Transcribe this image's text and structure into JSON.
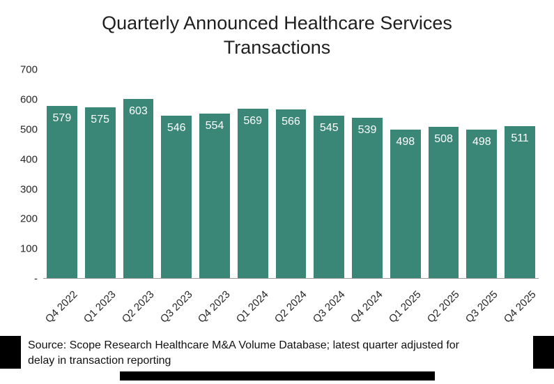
{
  "title": "Quarterly Announced Healthcare Services Transactions",
  "chart_data": {
    "type": "bar",
    "title": "Quarterly Announced Healthcare Services Transactions",
    "categories": [
      "Q4 2022",
      "Q1 2023",
      "Q2 2023",
      "Q3 2023",
      "Q4 2023",
      "Q1 2024",
      "Q2 2024",
      "Q3 2024",
      "Q4 2024",
      "Q1 2025",
      "Q2 2025",
      "Q3 2025",
      "Q4 2025"
    ],
    "values": [
      579,
      575,
      603,
      546,
      554,
      569,
      566,
      545,
      539,
      498,
      508,
      498,
      511
    ],
    "xlabel": "",
    "ylabel": "",
    "ylim": [
      0,
      700
    ],
    "ytick_values": [
      700,
      600,
      500,
      400,
      300,
      200,
      100,
      0
    ],
    "ytick_labels": [
      "700",
      "600",
      "500",
      "400",
      "300",
      "200",
      "100",
      "-"
    ],
    "grid": "off",
    "legend": "none",
    "bar_color": "#3A8778",
    "value_label_color": "#FFFFFF",
    "value_labels_shown": true
  },
  "footer": {
    "source": "Source: Scope Research Healthcare M&A Volume Database; latest quarter adjusted for delay in transaction reporting"
  }
}
